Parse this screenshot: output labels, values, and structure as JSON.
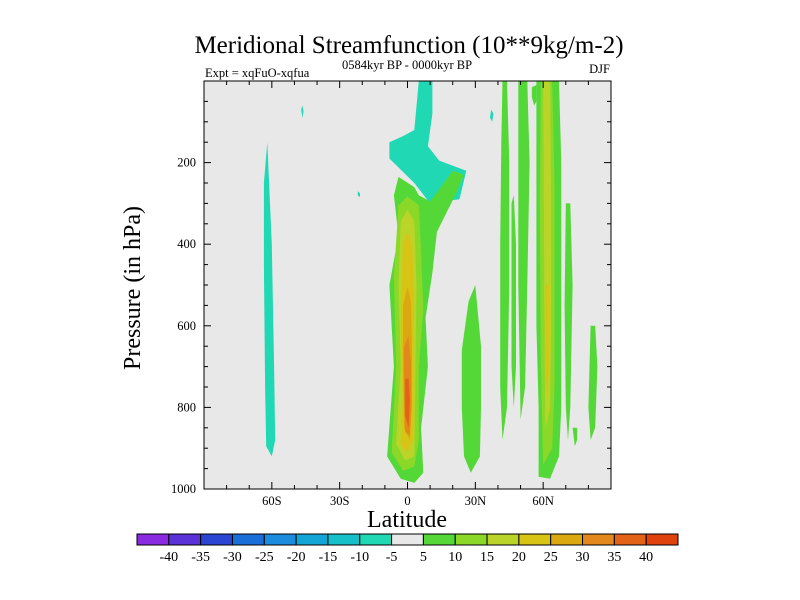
{
  "chart_data": {
    "type": "contour",
    "title": "Meridional Streamfunction (10**9kg/m-2)",
    "subtitle_left": "Expt = xqFuO-xqfua",
    "subtitle_center": "0584kyr BP - 0000kyr BP",
    "subtitle_right": "DJF",
    "xlabel": "Latitude",
    "ylabel": "Pressure (in hPa)",
    "xlim": [
      -90,
      90
    ],
    "ylim": [
      1000,
      0
    ],
    "xticks": [
      {
        "value": -60,
        "label": "60S"
      },
      {
        "value": -30,
        "label": "30S"
      },
      {
        "value": 0,
        "label": "0"
      },
      {
        "value": 30,
        "label": "30N"
      },
      {
        "value": 60,
        "label": "60N"
      }
    ],
    "yticks": [
      {
        "value": 200,
        "label": "200"
      },
      {
        "value": 400,
        "label": "400"
      },
      {
        "value": 600,
        "label": "600"
      },
      {
        "value": 800,
        "label": "800"
      },
      {
        "value": 1000,
        "label": "1000"
      }
    ],
    "background_color": "#e8e8e8",
    "colorbar": {
      "labels": [
        "-40",
        "-35",
        "-30",
        "-25",
        "-20",
        "-15",
        "-10",
        "-5",
        "5",
        "10",
        "15",
        "20",
        "25",
        "30",
        "35",
        "40"
      ],
      "colors": [
        "#8a2be2",
        "#5a32d8",
        "#2a46d2",
        "#1a6ed8",
        "#1c8cdc",
        "#12a6d6",
        "#16c0c8",
        "#20d8b4",
        "#e8e8e8",
        "#54d838",
        "#8cd828",
        "#bad42a",
        "#d8c414",
        "#dca810",
        "#e2881c",
        "#e26218",
        "#e0420e"
      ]
    },
    "regions": [
      {
        "level": -5,
        "color": "#20d8b4",
        "points": [
          [
            -62,
            150
          ],
          [
            -60,
            400
          ],
          [
            -59,
            700
          ],
          [
            -58.5,
            880
          ],
          [
            -60,
            920
          ],
          [
            -62.5,
            895
          ],
          [
            -63,
            750
          ],
          [
            -63.5,
            450
          ],
          [
            -63.5,
            250
          ]
        ]
      },
      {
        "level": -5,
        "color": "#20d8b4",
        "points": [
          [
            -8,
            150
          ],
          [
            -2,
            135
          ],
          [
            3,
            120
          ],
          [
            5,
            0
          ],
          [
            11,
            0
          ],
          [
            11,
            80
          ],
          [
            9,
            160
          ],
          [
            14,
            195
          ],
          [
            26,
            220
          ],
          [
            23,
            290
          ],
          [
            10,
            300
          ],
          [
            3,
            250
          ],
          [
            -8,
            190
          ]
        ]
      },
      {
        "level": -5,
        "color": "#20d8b4",
        "points": [
          [
            -47,
            70
          ],
          [
            -46.5,
            60
          ],
          [
            -46,
            75
          ],
          [
            -46.5,
            90
          ]
        ]
      },
      {
        "level": -5,
        "color": "#20d8b4",
        "points": [
          [
            -22,
            270
          ],
          [
            -21,
            275
          ],
          [
            -21,
            285
          ],
          [
            -22,
            280
          ]
        ]
      },
      {
        "level": -5,
        "color": "#20d8b4",
        "points": [
          [
            37,
            70
          ],
          [
            38,
            80
          ],
          [
            37.5,
            100
          ],
          [
            36.5,
            90
          ]
        ]
      },
      {
        "level": -5,
        "color": "#20d8b4",
        "points": [
          [
            50,
            0
          ],
          [
            52,
            0
          ],
          [
            52.5,
            70
          ],
          [
            51,
            80
          ],
          [
            50,
            40
          ]
        ]
      },
      {
        "level": 5,
        "color": "#54d838",
        "points": [
          [
            -4,
            380
          ],
          [
            -8,
            500
          ],
          [
            -6,
            700
          ],
          [
            -9,
            920
          ],
          [
            -3,
            975
          ],
          [
            3,
            985
          ],
          [
            7,
            960
          ],
          [
            6,
            850
          ],
          [
            9,
            700
          ],
          [
            8,
            580
          ],
          [
            11,
            470
          ],
          [
            13,
            370
          ],
          [
            22,
            270
          ],
          [
            25,
            230
          ],
          [
            20,
            220
          ],
          [
            10,
            295
          ],
          [
            5,
            280
          ],
          [
            3,
            260
          ],
          [
            -4,
            235
          ],
          [
            -6,
            280
          ]
        ]
      },
      {
        "level": 5,
        "color": "#54d838",
        "points": [
          [
            24,
            800
          ],
          [
            25,
            920
          ],
          [
            28,
            960
          ],
          [
            32,
            920
          ],
          [
            32.5,
            800
          ],
          [
            32.5,
            650
          ],
          [
            30,
            500
          ],
          [
            27,
            540
          ],
          [
            24,
            660
          ]
        ]
      },
      {
        "level": 5,
        "color": "#54d838",
        "points": [
          [
            42,
            0
          ],
          [
            44,
            0
          ],
          [
            45,
            200
          ],
          [
            45,
            500
          ],
          [
            44,
            800
          ],
          [
            42,
            880
          ],
          [
            41,
            750
          ],
          [
            41,
            400
          ],
          [
            41.5,
            150
          ]
        ]
      },
      {
        "level": 5,
        "color": "#54d838",
        "points": [
          [
            46,
            300
          ],
          [
            47,
            280
          ],
          [
            48,
            400
          ],
          [
            48,
            700
          ],
          [
            47,
            800
          ],
          [
            46,
            700
          ],
          [
            46,
            500
          ]
        ]
      },
      {
        "level": 5,
        "color": "#54d838",
        "points": [
          [
            49,
            0
          ],
          [
            53,
            0
          ],
          [
            54,
            200
          ],
          [
            53,
            500
          ],
          [
            52,
            750
          ],
          [
            50,
            830
          ],
          [
            49,
            500
          ]
        ]
      },
      {
        "level": 5,
        "color": "#54d838",
        "points": [
          [
            55,
            15
          ],
          [
            57,
            10
          ],
          [
            57,
            50
          ],
          [
            56,
            60
          ],
          [
            55,
            40
          ]
        ]
      },
      {
        "level": 5,
        "color": "#54d838",
        "points": [
          [
            57,
            0
          ],
          [
            67,
            0
          ],
          [
            68,
            200
          ],
          [
            68,
            500
          ],
          [
            68,
            800
          ],
          [
            67,
            920
          ],
          [
            63,
            975
          ],
          [
            58,
            970
          ],
          [
            58,
            800
          ],
          [
            57,
            600
          ],
          [
            57,
            300
          ]
        ]
      },
      {
        "level": 5,
        "color": "#54d838",
        "points": [
          [
            70,
            300
          ],
          [
            72,
            300
          ],
          [
            73,
            500
          ],
          [
            72,
            800
          ],
          [
            71,
            880
          ],
          [
            70,
            800
          ],
          [
            69.5,
            550
          ]
        ]
      },
      {
        "level": 5,
        "color": "#54d838",
        "points": [
          [
            81,
            600
          ],
          [
            83,
            600
          ],
          [
            84,
            700
          ],
          [
            83,
            850
          ],
          [
            81,
            880
          ],
          [
            80,
            800
          ]
        ]
      },
      {
        "level": 5,
        "color": "#54d838",
        "points": [
          [
            73,
            850
          ],
          [
            75,
            850
          ],
          [
            75,
            880
          ],
          [
            74,
            895
          ]
        ]
      },
      {
        "level": 10,
        "color": "#8cd828",
        "points": [
          [
            -4,
            305
          ],
          [
            -6,
            480
          ],
          [
            -5,
            700
          ],
          [
            -7,
            910
          ],
          [
            -2,
            955
          ],
          [
            3,
            945
          ],
          [
            5,
            880
          ],
          [
            5,
            700
          ],
          [
            7,
            560
          ],
          [
            6,
            420
          ],
          [
            5,
            305
          ],
          [
            0,
            283
          ]
        ]
      },
      {
        "level": 10,
        "color": "#8cd828",
        "points": [
          [
            59,
            0
          ],
          [
            64,
            0
          ],
          [
            65,
            250
          ],
          [
            65,
            500
          ],
          [
            65,
            750
          ],
          [
            64,
            900
          ],
          [
            60,
            940
          ],
          [
            59,
            700
          ],
          [
            58.5,
            300
          ]
        ]
      },
      {
        "level": 15,
        "color": "#bad42a",
        "points": [
          [
            -3,
            345
          ],
          [
            -4,
            500
          ],
          [
            -3,
            700
          ],
          [
            -5,
            890
          ],
          [
            -1,
            930
          ],
          [
            3,
            920
          ],
          [
            3.5,
            700
          ],
          [
            4,
            500
          ],
          [
            3,
            345
          ],
          [
            0,
            315
          ]
        ]
      },
      {
        "level": 15,
        "color": "#bad42a",
        "points": [
          [
            60,
            0
          ],
          [
            63,
            0
          ],
          [
            63.5,
            300
          ],
          [
            63.5,
            600
          ],
          [
            63,
            800
          ],
          [
            61,
            850
          ],
          [
            60.5,
            500
          ]
        ]
      },
      {
        "level": 20,
        "color": "#d8c414",
        "points": [
          [
            -2,
            400
          ],
          [
            -3,
            600
          ],
          [
            -2,
            780
          ],
          [
            -3,
            890
          ],
          [
            0,
            910
          ],
          [
            2.5,
            880
          ],
          [
            2.5,
            700
          ],
          [
            3,
            520
          ],
          [
            2,
            400
          ],
          [
            0,
            370
          ]
        ]
      },
      {
        "level": 20,
        "color": "#d8c414",
        "points": [
          [
            61,
            500
          ],
          [
            62.5,
            500
          ],
          [
            62.5,
            720
          ],
          [
            61.5,
            780
          ],
          [
            61,
            650
          ]
        ]
      },
      {
        "level": 25,
        "color": "#dca810",
        "points": [
          [
            -2,
            550
          ],
          [
            -2,
            700
          ],
          [
            -1.5,
            850
          ],
          [
            1,
            880
          ],
          [
            2,
            800
          ],
          [
            2,
            650
          ],
          [
            1.5,
            540
          ],
          [
            0,
            505
          ]
        ]
      },
      {
        "level": 30,
        "color": "#e2881c",
        "points": [
          [
            -1.5,
            650
          ],
          [
            -1.5,
            780
          ],
          [
            -1,
            860
          ],
          [
            1,
            870
          ],
          [
            1.5,
            800
          ],
          [
            1.5,
            690
          ],
          [
            0.5,
            625
          ]
        ]
      },
      {
        "level": 35,
        "color": "#e26218",
        "points": [
          [
            -1,
            730
          ],
          [
            -1,
            820
          ],
          [
            0.5,
            850
          ],
          [
            1,
            780
          ],
          [
            0.5,
            730
          ]
        ]
      }
    ]
  }
}
